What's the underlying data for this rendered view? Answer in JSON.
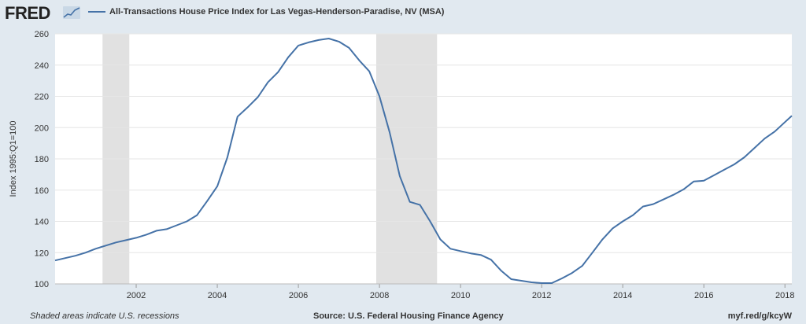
{
  "header": {
    "logo": "FRED",
    "series_title": "All-Transactions House Price Index for Las Vegas-Henderson-Paradise, NV (MSA)"
  },
  "footer": {
    "note": "Shaded areas indicate U.S. recessions",
    "source": "Source: U.S. Federal Housing Finance Agency",
    "link": "myf.red/g/kcyW"
  },
  "colors": {
    "line": "#4572a7",
    "plot_bg": "#ffffff",
    "page_bg": "#e1e9f0",
    "recession": "#e1e1e1",
    "grid": "#e6e6e6"
  },
  "chart_data": {
    "type": "line",
    "title": "All-Transactions House Price Index for Las Vegas-Henderson-Paradise, NV (MSA)",
    "ylabel": "Index 1995:Q1=100",
    "xlabel": "",
    "ylim": [
      100,
      260
    ],
    "xlim": [
      2000.0,
      2018.17
    ],
    "yticks": [
      100,
      120,
      140,
      160,
      180,
      200,
      220,
      240,
      260
    ],
    "xticks": [
      2002,
      2004,
      2006,
      2008,
      2010,
      2012,
      2014,
      2016,
      2018
    ],
    "grid": true,
    "legend": "top-left",
    "recessions": [
      [
        2001.17,
        2001.83
      ],
      [
        2007.92,
        2009.42
      ]
    ],
    "series": [
      {
        "name": "All-Transactions House Price Index for Las Vegas-Henderson-Paradise, NV (MSA)",
        "x": [
          2000.0,
          2000.25,
          2000.5,
          2000.75,
          2001.0,
          2001.25,
          2001.5,
          2001.75,
          2002.0,
          2002.25,
          2002.5,
          2002.75,
          2003.0,
          2003.25,
          2003.5,
          2003.75,
          2004.0,
          2004.25,
          2004.5,
          2004.75,
          2005.0,
          2005.25,
          2005.5,
          2005.75,
          2006.0,
          2006.25,
          2006.5,
          2006.75,
          2007.0,
          2007.25,
          2007.5,
          2007.75,
          2008.0,
          2008.25,
          2008.5,
          2008.75,
          2009.0,
          2009.25,
          2009.5,
          2009.75,
          2010.0,
          2010.25,
          2010.5,
          2010.75,
          2011.0,
          2011.25,
          2011.5,
          2011.75,
          2012.0,
          2012.25,
          2012.5,
          2012.75,
          2013.0,
          2013.25,
          2013.5,
          2013.75,
          2014.0,
          2014.25,
          2014.5,
          2014.75,
          2015.0,
          2015.25,
          2015.5,
          2015.75,
          2016.0,
          2016.25,
          2016.5,
          2016.75,
          2017.0,
          2017.25,
          2017.5,
          2017.75,
          2018.0,
          2018.17
        ],
        "values": [
          115,
          116.5,
          118,
          120,
          122.5,
          124.5,
          126.5,
          128,
          129.5,
          131.5,
          134,
          135,
          137.5,
          140,
          144,
          153,
          162.5,
          181,
          207,
          213,
          219.5,
          229,
          235.5,
          245,
          252.5,
          254.5,
          256,
          257,
          255,
          251,
          243,
          236,
          220,
          197,
          169,
          152.5,
          150.5,
          140,
          128.5,
          122.5,
          121,
          119.5,
          118.5,
          115.5,
          108.5,
          103,
          102,
          101,
          100.5,
          100.5,
          103.5,
          107,
          111.5,
          120,
          128.5,
          135.5,
          140,
          144,
          149.5,
          151,
          154,
          157,
          160.5,
          165.5,
          166,
          169.5,
          173,
          176.5,
          181,
          187,
          193,
          197.5,
          203.5,
          207.5
        ]
      }
    ]
  }
}
